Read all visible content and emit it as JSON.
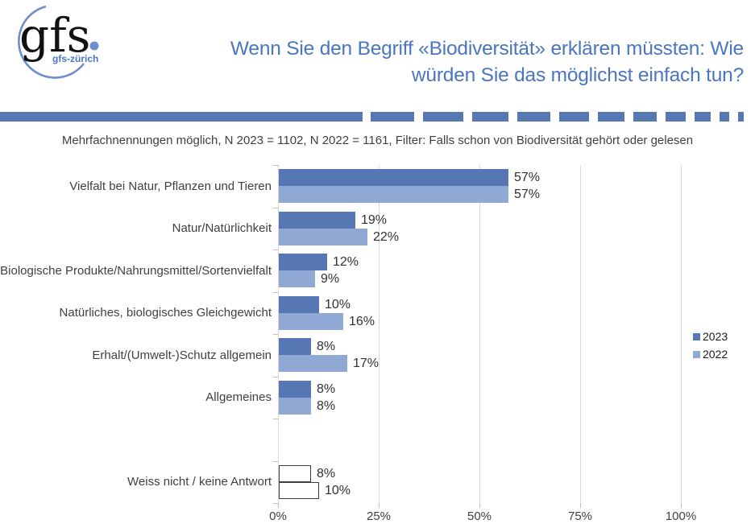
{
  "logo": {
    "text": "gfs",
    "dot": ".",
    "subtext": "gfs-zürich"
  },
  "title": {
    "line1": "Wenn Sie den Begriff «Biodiversität» erklären müssten: Wie",
    "line2": "würden Sie das möglichst einfach tun?"
  },
  "subtitle": "Mehrfachnennungen möglich, N 2023 = 1102, N 2022 = 1161, Filter: Falls schon von Biodiversität gehört oder gelesen",
  "colors": {
    "accent_bar": "#5878b4",
    "title_blue": "#4a75c1",
    "series_2023": "#5677b4",
    "series_2022": "#90a8d4",
    "grid": "#d9d9d9",
    "tick": "#bfbfbf",
    "text": "#3f3f3f",
    "outlined_bar_border": "#3f3f3f",
    "logo_blue": "#6e8fcb"
  },
  "legend": {
    "items": [
      {
        "label": "2023",
        "color_key": "series_2023"
      },
      {
        "label": "2022",
        "color_key": "series_2022"
      }
    ],
    "position": "right"
  },
  "chart_data": {
    "type": "bar",
    "orientation": "horizontal",
    "title": "Wenn Sie den Begriff «Biodiversität» erklären müssten: Wie würden Sie das möglichst einfach tun?",
    "subtitle": "Mehrfachnennungen möglich, N 2023 = 1102, N 2022 = 1161, Filter: Falls schon von Biodiversität gehört oder gelesen",
    "categories": [
      "Vielfalt bei Natur, Pflanzen und Tieren",
      "Natur/Natürlichkeit",
      "Biologische Produkte/Nahrungsmittel/Sortenvielfalt",
      "Natürliches, biologisches Gleichgewicht",
      "Erhalt/(Umwelt-)Schutz allgemein",
      "Allgemeines",
      "Weiss nicht / keine Antwort"
    ],
    "series": [
      {
        "name": "2023",
        "values": [
          57,
          19,
          12,
          10,
          8,
          8,
          8
        ]
      },
      {
        "name": "2022",
        "values": [
          57,
          22,
          9,
          16,
          17,
          8,
          10
        ]
      }
    ],
    "value_labels": [
      [
        "57%",
        "57%"
      ],
      [
        "19%",
        "22%"
      ],
      [
        "12%",
        "9%"
      ],
      [
        "10%",
        "16%"
      ],
      [
        "8%",
        "17%"
      ],
      [
        "8%",
        "8%"
      ],
      [
        "8%",
        "10%"
      ]
    ],
    "outlined_last_category": true,
    "xlim": [
      0,
      100
    ],
    "x_tick_values": [
      0,
      25,
      50,
      75,
      100
    ],
    "x_tick_labels": [
      "0%",
      "25%",
      "50%",
      "75%",
      "100%"
    ],
    "grid": true,
    "legend_position": "right"
  }
}
